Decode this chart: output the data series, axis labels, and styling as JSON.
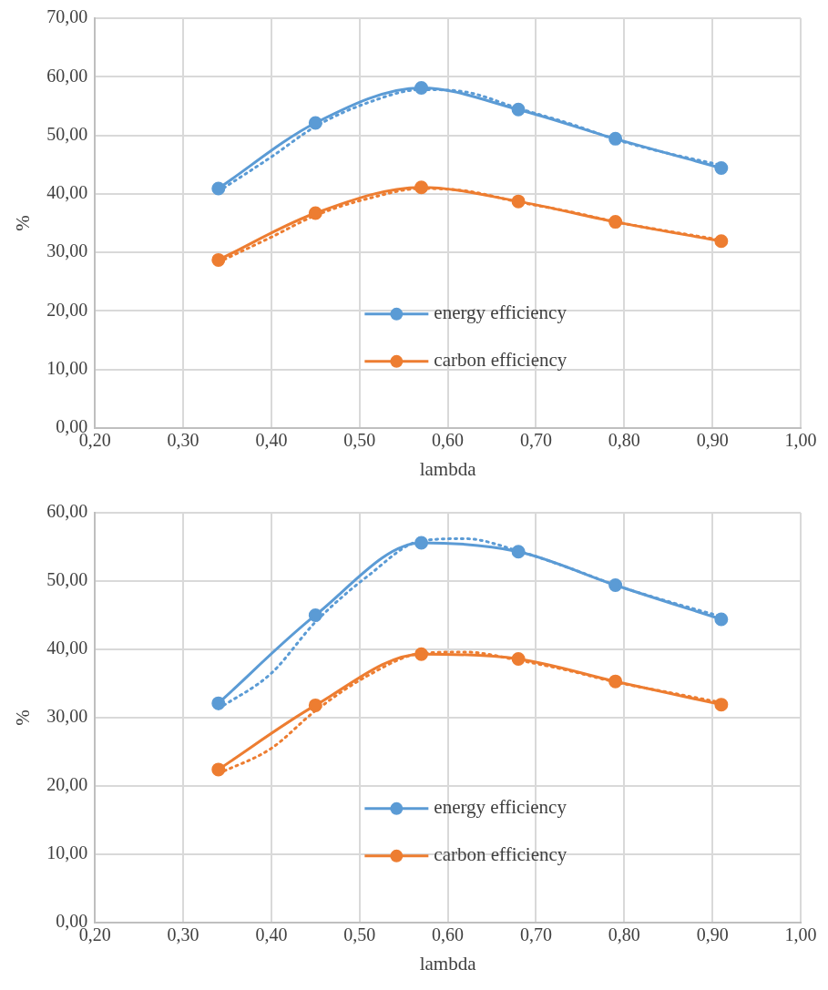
{
  "chart_data": [
    {
      "type": "line",
      "xlabel": "lambda",
      "ylabel": "%",
      "grid": true,
      "legend": "bottom",
      "marker": "circle",
      "line_style": "solid",
      "xlim": [
        0.2,
        1.0
      ],
      "xticks": [
        {
          "value": 0.2,
          "label": "0,20"
        },
        {
          "value": 0.3,
          "label": "0,30"
        },
        {
          "value": 0.4,
          "label": "0,40"
        },
        {
          "value": 0.5,
          "label": "0,50"
        },
        {
          "value": 0.6,
          "label": "0,60"
        },
        {
          "value": 0.7,
          "label": "0,70"
        },
        {
          "value": 0.8,
          "label": "0,80"
        },
        {
          "value": 0.9,
          "label": "0,90"
        },
        {
          "value": 1.0,
          "label": "1,00"
        }
      ],
      "ylim": [
        0,
        70
      ],
      "yticks": [
        {
          "value": 0,
          "label": "0,00"
        },
        {
          "value": 10,
          "label": "10,00"
        },
        {
          "value": 20,
          "label": "20,00"
        },
        {
          "value": 30,
          "label": "30,00"
        },
        {
          "value": 40,
          "label": "40,00"
        },
        {
          "value": 50,
          "label": "50,00"
        },
        {
          "value": 60,
          "label": "60,00"
        },
        {
          "value": 70,
          "label": "70,00"
        }
      ],
      "series": [
        {
          "name": "energy efficiency",
          "color": "#5b9bd5",
          "x": [
            0.34,
            0.45,
            0.57,
            0.68,
            0.79,
            0.91
          ],
          "values": [
            40.9,
            52.1,
            58.1,
            54.4,
            49.4,
            44.4
          ]
        },
        {
          "name": "carbon efficiency",
          "color": "#ed7d31",
          "x": [
            0.34,
            0.45,
            0.57,
            0.68,
            0.79,
            0.91
          ],
          "values": [
            28.7,
            36.7,
            41.1,
            38.7,
            35.2,
            31.9
          ]
        },
        {
          "type": "line",
          "color": "#5b9bd5",
          "line_style": "dotted",
          "marker": "none",
          "x": [
            0.34,
            0.4,
            0.45,
            0.51,
            0.57,
            0.62,
            0.68,
            0.74,
            0.79,
            0.85,
            0.91
          ],
          "values": [
            40.4,
            46.3,
            51.5,
            55.6,
            57.8,
            57.4,
            54.6,
            51.9,
            49.3,
            46.9,
            44.9
          ]
        },
        {
          "type": "line",
          "color": "#ed7d31",
          "line_style": "dotted",
          "marker": "none",
          "x": [
            0.34,
            0.4,
            0.45,
            0.51,
            0.57,
            0.62,
            0.68,
            0.74,
            0.79,
            0.85,
            0.91
          ],
          "values": [
            28.3,
            32.6,
            36.3,
            39.2,
            40.9,
            40.5,
            38.6,
            36.9,
            35.2,
            33.6,
            32.1
          ]
        }
      ]
    },
    {
      "type": "line",
      "xlabel": "lambda",
      "ylabel": "%",
      "grid": true,
      "legend": "bottom",
      "marker": "circle",
      "line_style": "solid",
      "xlim": [
        0.2,
        1.0
      ],
      "xticks": [
        {
          "value": 0.2,
          "label": "0,20"
        },
        {
          "value": 0.3,
          "label": "0,30"
        },
        {
          "value": 0.4,
          "label": "0,40"
        },
        {
          "value": 0.5,
          "label": "0,50"
        },
        {
          "value": 0.6,
          "label": "0,60"
        },
        {
          "value": 0.7,
          "label": "0,70"
        },
        {
          "value": 0.8,
          "label": "0,80"
        },
        {
          "value": 0.9,
          "label": "0,90"
        },
        {
          "value": 1.0,
          "label": "1,00"
        }
      ],
      "ylim": [
        0,
        60
      ],
      "yticks": [
        {
          "value": 0,
          "label": "0,00"
        },
        {
          "value": 10,
          "label": "10,00"
        },
        {
          "value": 20,
          "label": "20,00"
        },
        {
          "value": 30,
          "label": "30,00"
        },
        {
          "value": 40,
          "label": "40,00"
        },
        {
          "value": 50,
          "label": "50,00"
        },
        {
          "value": 60,
          "label": "60,00"
        }
      ],
      "series": [
        {
          "name": "energy efficiency",
          "color": "#5b9bd5",
          "x": [
            0.34,
            0.45,
            0.57,
            0.68,
            0.79,
            0.91
          ],
          "values": [
            32.1,
            45.0,
            55.6,
            54.3,
            49.4,
            44.4
          ]
        },
        {
          "name": "carbon efficiency",
          "color": "#ed7d31",
          "x": [
            0.34,
            0.45,
            0.57,
            0.68,
            0.79,
            0.91
          ],
          "values": [
            22.4,
            31.8,
            39.3,
            38.6,
            35.3,
            31.9
          ]
        },
        {
          "type": "line",
          "color": "#5b9bd5",
          "line_style": "dotted",
          "marker": "none",
          "x": [
            0.34,
            0.4,
            0.45,
            0.51,
            0.57,
            0.62,
            0.68,
            0.74,
            0.79,
            0.85,
            0.91
          ],
          "values": [
            31.3,
            36.5,
            44.0,
            50.8,
            55.9,
            56.2,
            54.4,
            51.8,
            49.4,
            47.0,
            44.8
          ]
        },
        {
          "type": "line",
          "color": "#ed7d31",
          "line_style": "dotted",
          "marker": "none",
          "x": [
            0.34,
            0.4,
            0.45,
            0.51,
            0.57,
            0.62,
            0.68,
            0.74,
            0.79,
            0.85,
            0.91
          ],
          "values": [
            21.8,
            25.5,
            31.0,
            36.2,
            39.4,
            39.6,
            38.4,
            36.8,
            35.2,
            33.7,
            32.2
          ]
        }
      ]
    }
  ]
}
